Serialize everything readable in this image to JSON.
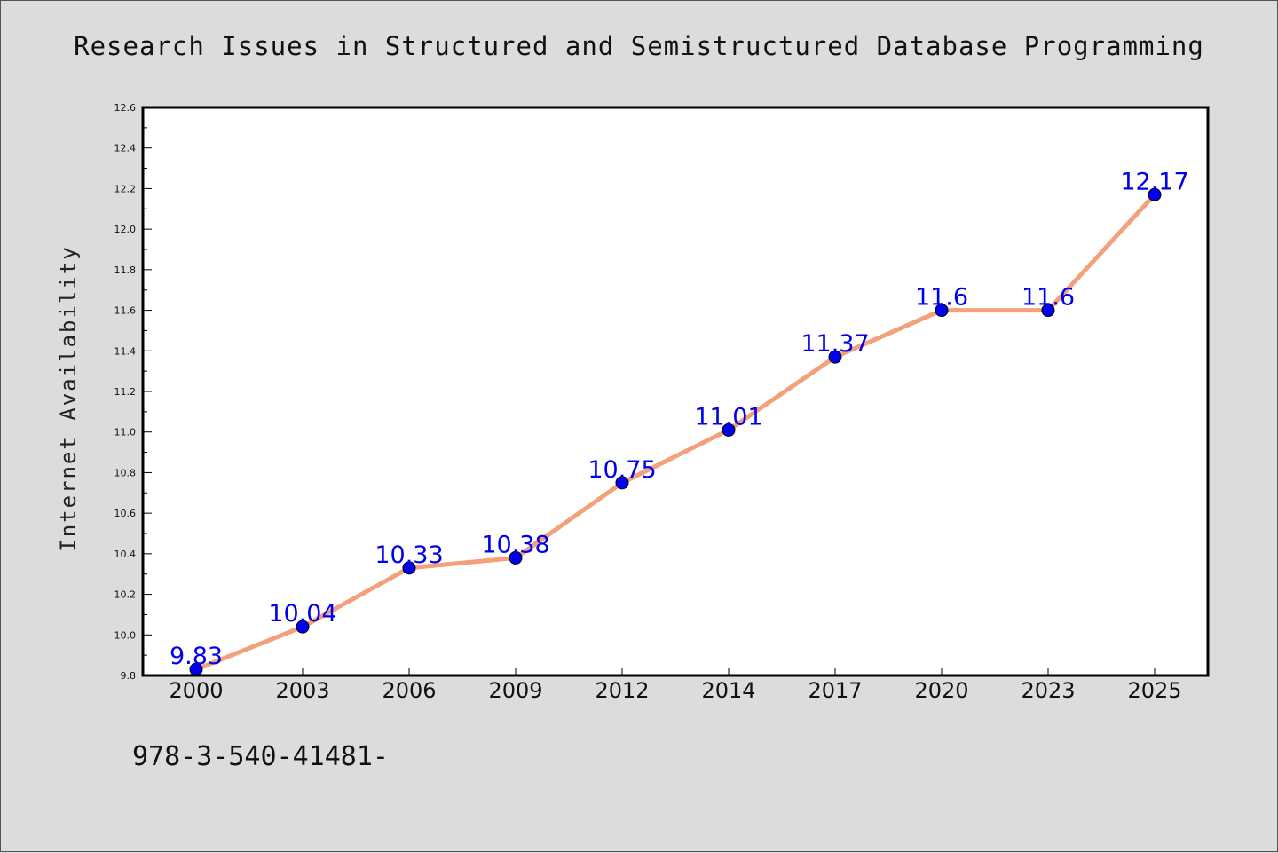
{
  "chart_data": {
    "type": "line",
    "title": "Research Issues in Structured and Semistructured Database Programming",
    "ylabel": "Internet Availability",
    "xlabel": "",
    "categories": [
      "2000",
      "2003",
      "2006",
      "2009",
      "2012",
      "2014",
      "2017",
      "2020",
      "2023",
      "2025"
    ],
    "series": [
      {
        "values": [
          9.83,
          10.04,
          10.33,
          10.38,
          10.75,
          11.01,
          11.37,
          11.6,
          11.6,
          12.17
        ],
        "data_labels": [
          "9.83",
          "10.04",
          "10.33",
          "10.38",
          "10.75",
          "11.01",
          "11.37",
          "11.6",
          "11.6",
          "12.17"
        ]
      }
    ],
    "ylim": [
      9.8,
      12.6
    ],
    "yticks": [
      "9.8",
      "10.0",
      "10.2",
      "10.4",
      "10.6",
      "10.8",
      "11.0",
      "11.2",
      "11.4",
      "11.6",
      "11.8",
      "12.0",
      "12.2",
      "12.4",
      "12.6"
    ],
    "grid": false,
    "colors": {
      "line": "#f4a07a",
      "marker": "#0000ee",
      "label": "#0000ee",
      "axis": "#000000"
    }
  },
  "annotations": {
    "footnote": "978-3-540-41481-"
  }
}
